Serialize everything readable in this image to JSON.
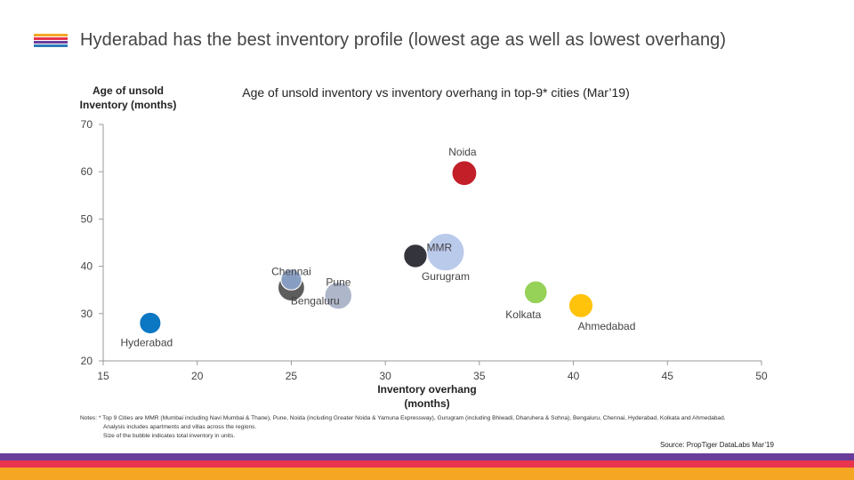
{
  "header": {
    "title": "Hyderabad has the best inventory profile (lowest age as well as lowest overhang)",
    "icon_colors": [
      "#f5a623",
      "#e8344e",
      "#6a3d9a",
      "#2a7ab8"
    ]
  },
  "chart_data": {
    "type": "scatter",
    "variant": "bubble",
    "title": "Age of unsold inventory vs inventory overhang in top-9* cities (Mar’19)",
    "ylabel": "Age of unsold Inventory (months)",
    "xlabel": "Inventory overhang (months)",
    "xlim": [
      15,
      50
    ],
    "ylim": [
      20,
      70
    ],
    "xticks": [
      15,
      20,
      25,
      30,
      35,
      40,
      45,
      50
    ],
    "yticks": [
      20,
      30,
      40,
      50,
      60,
      70
    ],
    "grid": false,
    "legend": "none",
    "points": [
      {
        "label": "Noida",
        "x": 34.2,
        "y": 59.7,
        "size": 1.0,
        "color": "#c0141e"
      },
      {
        "label": "MMR",
        "x": 33.2,
        "y": 43.0,
        "size": 2.3,
        "color": "#b7c8ea"
      },
      {
        "label": "Gurugram",
        "x": 31.6,
        "y": 42.2,
        "size": 0.9,
        "color": "#2a2a33"
      },
      {
        "label": "Chennai",
        "x": 25.0,
        "y": 35.5,
        "size": 1.15,
        "color": "#555555"
      },
      {
        "label": "Pune",
        "x": 25.0,
        "y": 37.2,
        "size": 0.7,
        "color": "#8aa2c8"
      },
      {
        "label": "Bengaluru",
        "x": 27.5,
        "y": 33.8,
        "size": 1.2,
        "color": "#aab3c8"
      },
      {
        "label": "Kolkata",
        "x": 38.0,
        "y": 34.5,
        "size": 0.85,
        "color": "#92d050"
      },
      {
        "label": "Ahmedabad",
        "x": 40.4,
        "y": 31.7,
        "size": 0.95,
        "color": "#ffc000"
      },
      {
        "label": "Hyderabad",
        "x": 17.5,
        "y": 28.0,
        "size": 0.75,
        "color": "#0070c0"
      }
    ]
  },
  "notes": {
    "line1": "Notes: * Top 9 Cities are MMR (Mumbai including Navi Mumbai & Thane), Pune, Noida (including Greater Noida & Yamuna Expressway), Gurugram (including Bhiwadi, Dharuhera & Sohna), Bengaluru, Chennai, Hyderabad, Kolkata and Ahmedabad.",
    "line2": "Analysis includes apartments and villas across the regions.",
    "line3": "Size of the bubble indicates total inventory in units."
  },
  "source": "Source: PropTiger DataLabs Mar’19",
  "footer": {
    "band_colors": [
      "#6a3d9a",
      "#e8344e",
      "#f5a623"
    ]
  }
}
